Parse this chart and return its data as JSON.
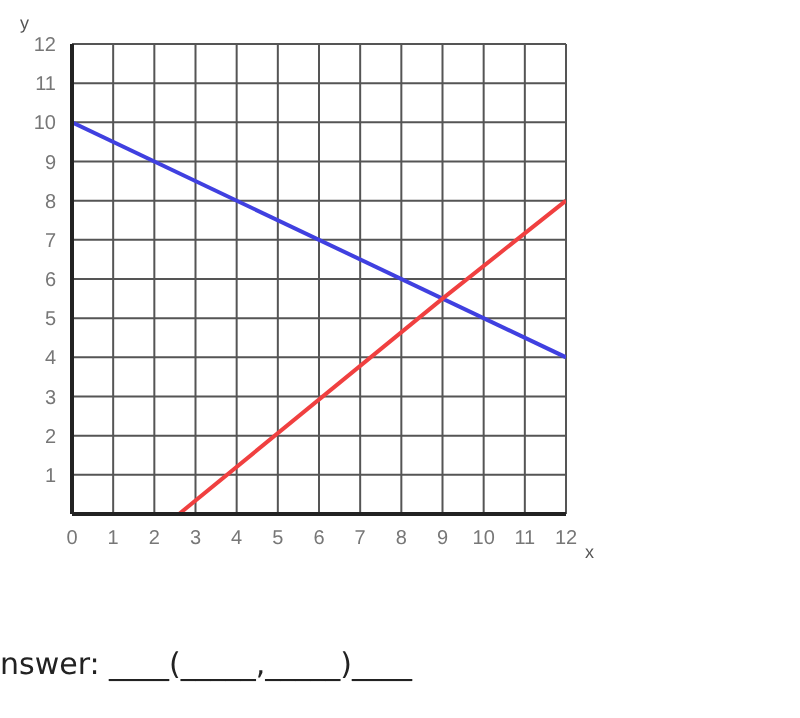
{
  "chart_data": {
    "type": "line",
    "xlabel": "x",
    "ylabel": "y",
    "xlim": [
      0,
      12
    ],
    "ylim": [
      0,
      12
    ],
    "xticks": [
      0,
      1,
      2,
      3,
      4,
      5,
      6,
      7,
      8,
      9,
      10,
      11,
      12
    ],
    "yticks": [
      {
        "value": 0,
        "label": null
      },
      1,
      2,
      3,
      4,
      5,
      6,
      7,
      8,
      9,
      10,
      11,
      12
    ],
    "grid": true,
    "marker": "none",
    "line_style": "solid",
    "series": [
      {
        "color": "#4040e0",
        "x": [
          0,
          12
        ],
        "values": [
          10,
          4
        ]
      },
      {
        "color": "#f04040",
        "x": [
          2.6,
          9,
          12
        ],
        "values": [
          0,
          5.5,
          8
        ]
      }
    ],
    "annotations": [
      "nswer: ____(_____,_____)____"
    ]
  }
}
